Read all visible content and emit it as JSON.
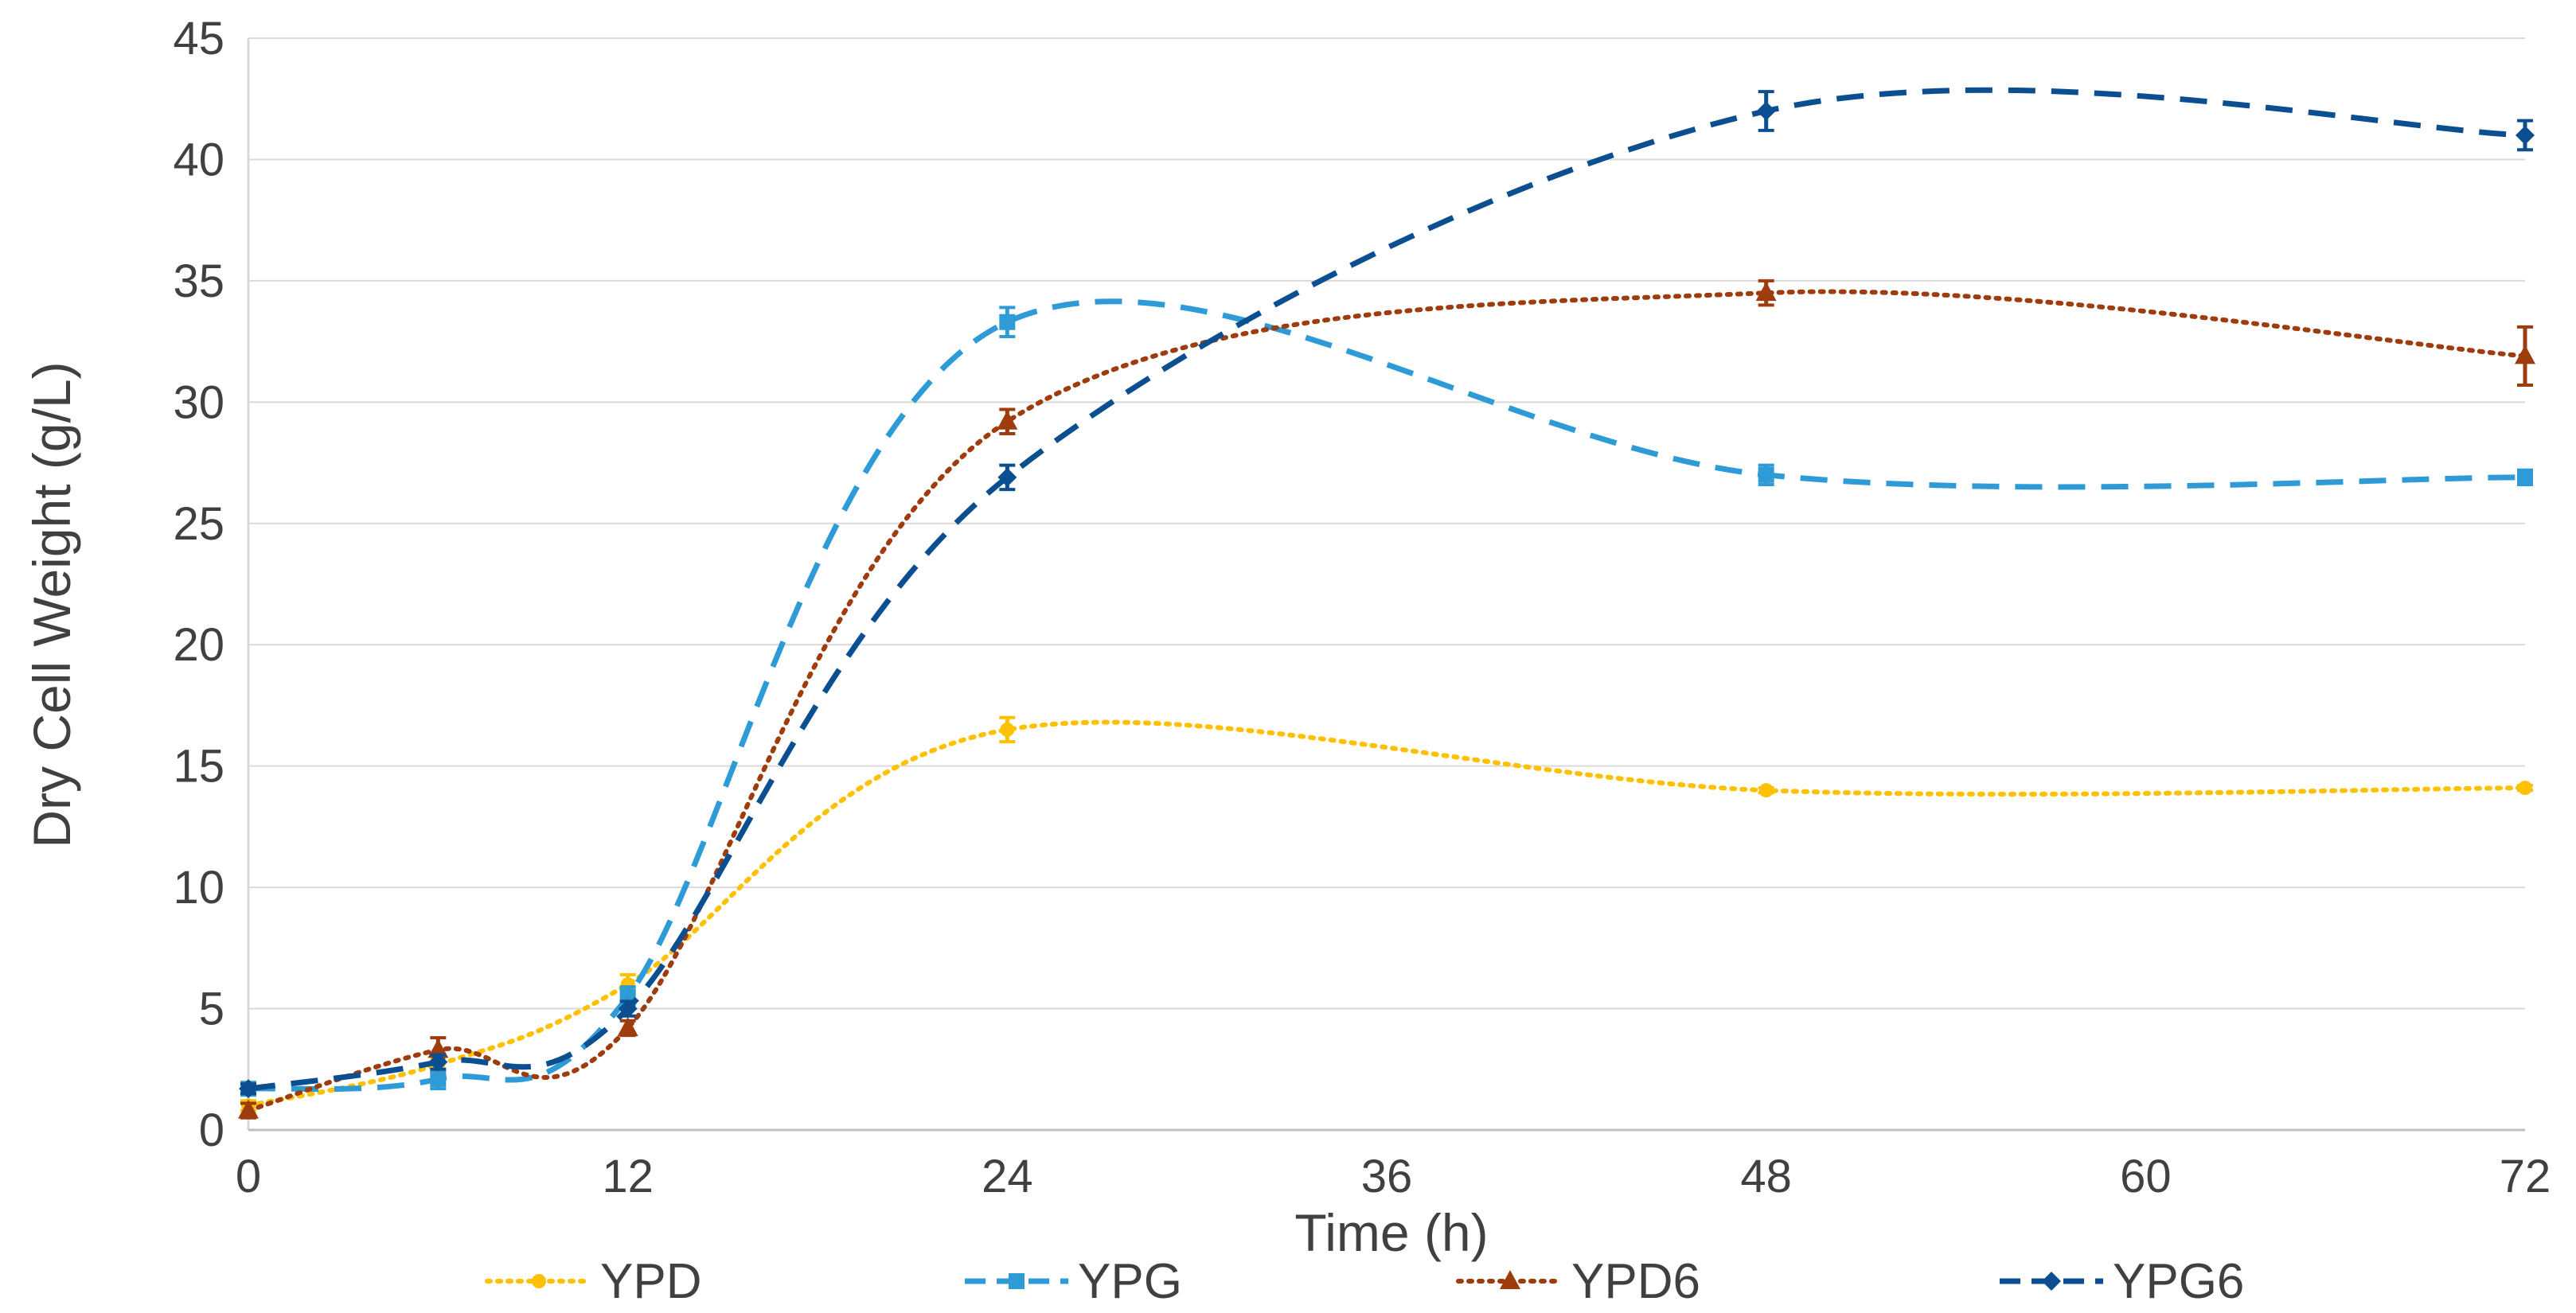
{
  "chart_data": {
    "type": "line",
    "title": "",
    "xlabel": "Time (h)",
    "ylabel": "Dry Cell Weight (g/L)",
    "x": [
      0,
      6,
      12,
      24,
      48,
      72
    ],
    "xticks": [
      "0",
      "12",
      "24",
      "36",
      "48",
      "60",
      "72"
    ],
    "xtick_values": [
      0,
      12,
      24,
      36,
      48,
      60,
      72
    ],
    "yticks": [
      "0",
      "5",
      "10",
      "15",
      "20",
      "25",
      "30",
      "35",
      "40",
      "45"
    ],
    "ytick_values": [
      0,
      5,
      10,
      15,
      20,
      25,
      30,
      35,
      40,
      45
    ],
    "xlim": [
      0,
      72
    ],
    "ylim": [
      0,
      45
    ],
    "grid": "horizontal",
    "smoothed": true,
    "legend_position": "bottom",
    "series": [
      {
        "name": "YPD",
        "color": "#FFC000",
        "line_style": "dotted",
        "marker": "circle",
        "values": [
          1.0,
          2.7,
          6.0,
          16.5,
          14.0,
          14.1
        ],
        "errors": [
          0.2,
          0.3,
          0.4,
          0.5,
          0.1,
          0.1
        ]
      },
      {
        "name": "YPG",
        "color": "#2E9BD6",
        "line_style": "dashed",
        "marker": "square",
        "values": [
          1.7,
          2.1,
          5.5,
          33.3,
          27.0,
          26.9
        ],
        "errors": [
          0.2,
          0.4,
          0.4,
          0.6,
          0.4,
          0.3
        ]
      },
      {
        "name": "YPD6",
        "color": "#9E3C0E",
        "line_style": "dotted",
        "marker": "triangle",
        "values": [
          0.8,
          3.3,
          4.2,
          29.2,
          34.5,
          31.9
        ],
        "errors": [
          0.3,
          0.5,
          0.3,
          0.5,
          0.5,
          1.2
        ]
      },
      {
        "name": "YPG6",
        "color": "#0B4F91",
        "line_style": "dashed",
        "marker": "diamond",
        "values": [
          1.7,
          2.8,
          5.0,
          26.9,
          42.0,
          41.0
        ],
        "errors": [
          0.2,
          0.3,
          0.3,
          0.5,
          0.8,
          0.6
        ]
      }
    ]
  }
}
